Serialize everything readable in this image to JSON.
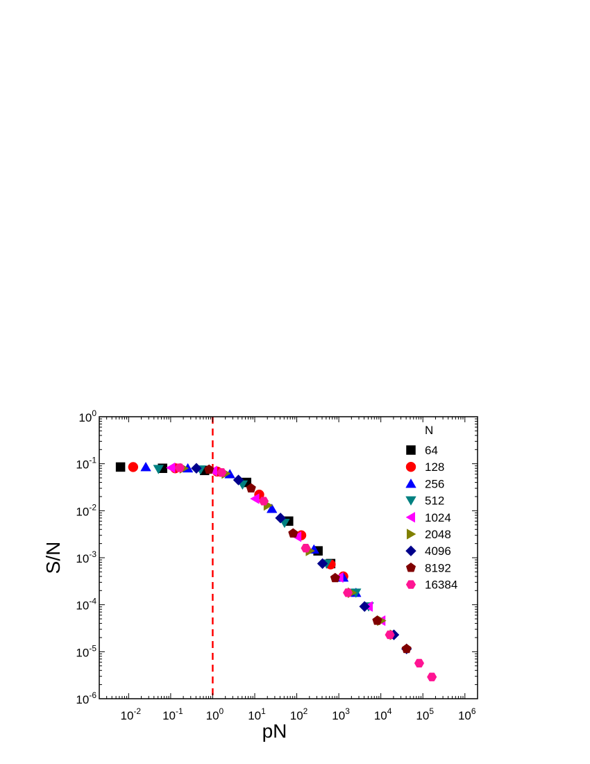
{
  "chart_data": {
    "type": "scatter",
    "title": "",
    "xlabel": "pN",
    "ylabel": "S/N",
    "xscale": "log",
    "yscale": "log",
    "xlim": [
      0.002,
      2000000
    ],
    "ylim": [
      1e-06,
      1
    ],
    "x_ticks": [
      {
        "base": "10",
        "exp": "-2",
        "value": 0.01
      },
      {
        "base": "10",
        "exp": "-1",
        "value": 0.1
      },
      {
        "base": "10",
        "exp": "0",
        "value": 1
      },
      {
        "base": "10",
        "exp": "1",
        "value": 10
      },
      {
        "base": "10",
        "exp": "2",
        "value": 100
      },
      {
        "base": "10",
        "exp": "3",
        "value": 1000
      },
      {
        "base": "10",
        "exp": "4",
        "value": 10000
      },
      {
        "base": "10",
        "exp": "5",
        "value": 100000
      },
      {
        "base": "10",
        "exp": "6",
        "value": 1000000
      }
    ],
    "y_ticks": [
      {
        "base": "10",
        "exp": "0",
        "value": 1
      },
      {
        "base": "10",
        "exp": "-1",
        "value": 0.1
      },
      {
        "base": "10",
        "exp": "-2",
        "value": 0.01
      },
      {
        "base": "10",
        "exp": "-3",
        "value": 0.001
      },
      {
        "base": "10",
        "exp": "-4",
        "value": 0.0001
      },
      {
        "base": "10",
        "exp": "-5",
        "value": 1e-05
      },
      {
        "base": "10",
        "exp": "-6",
        "value": 1e-06
      }
    ],
    "reference_line": {
      "x": 1,
      "color": "#ff0000",
      "style": "dashed"
    },
    "legend": {
      "title": "N",
      "placement": "top-right"
    },
    "series": [
      {
        "name": "64",
        "marker": "square",
        "color": "#000000",
        "points": [
          [
            0.0064,
            0.085
          ],
          [
            0.064,
            0.08
          ],
          [
            0.64,
            0.072
          ],
          [
            6.4,
            0.04
          ],
          [
            64,
            0.006
          ],
          [
            320,
            0.0014
          ],
          [
            640,
            0.00075
          ]
        ]
      },
      {
        "name": "128",
        "marker": "circle",
        "color": "#ff0000",
        "points": [
          [
            0.0128,
            0.085
          ],
          [
            0.128,
            0.08
          ],
          [
            1.28,
            0.068
          ],
          [
            12.8,
            0.022
          ],
          [
            128,
            0.003
          ],
          [
            640,
            0.00072
          ],
          [
            1280,
            0.0004
          ]
        ]
      },
      {
        "name": "256",
        "marker": "triangle-up",
        "color": "#0000ff",
        "points": [
          [
            0.0256,
            0.085
          ],
          [
            0.256,
            0.08
          ],
          [
            2.56,
            0.06
          ],
          [
            25.6,
            0.011
          ],
          [
            256,
            0.0015
          ],
          [
            1280,
            0.00038
          ],
          [
            2560,
            0.00018
          ]
        ]
      },
      {
        "name": "512",
        "marker": "triangle-down",
        "color": "#008080",
        "points": [
          [
            0.0512,
            0.077
          ],
          [
            0.512,
            0.075
          ],
          [
            5.12,
            0.036
          ],
          [
            51.2,
            0.0055
          ],
          [
            512,
            0.00075
          ],
          [
            2560,
            0.00018
          ],
          [
            5120,
            9.17e-05
          ]
        ]
      },
      {
        "name": "1024",
        "marker": "triangle-left",
        "color": "#ff00ff",
        "points": [
          [
            0.1024,
            0.082
          ],
          [
            1.024,
            0.07
          ],
          [
            10.24,
            0.018
          ],
          [
            102.4,
            0.0028
          ],
          [
            1024,
            0.00038
          ],
          [
            5120,
            9.17e-05
          ],
          [
            10240,
            4.58e-05
          ]
        ]
      },
      {
        "name": "2048",
        "marker": "triangle-right",
        "color": "#808000",
        "points": [
          [
            0.2048,
            0.08
          ],
          [
            2.048,
            0.062
          ],
          [
            20.48,
            0.013
          ],
          [
            204.8,
            0.0014
          ],
          [
            2048,
            0.00018
          ],
          [
            10240,
            4.58e-05
          ],
          [
            20480,
            2.29e-05
          ]
        ]
      },
      {
        "name": "4096",
        "marker": "diamond",
        "color": "#00008b",
        "points": [
          [
            0.4096,
            0.08
          ],
          [
            4.096,
            0.045
          ],
          [
            40.96,
            0.007
          ],
          [
            409.6,
            0.00075
          ],
          [
            4096,
            9.17e-05
          ],
          [
            20480,
            2.29e-05
          ],
          [
            40960,
            1.15e-05
          ]
        ]
      },
      {
        "name": "8192",
        "marker": "pentagon",
        "color": "#800000",
        "points": [
          [
            0.8192,
            0.075
          ],
          [
            8.192,
            0.03
          ],
          [
            81.92,
            0.0033
          ],
          [
            819.2,
            0.00037
          ],
          [
            8192,
            4.58e-05
          ],
          [
            40960,
            1.15e-05
          ]
        ]
      },
      {
        "name": "16384",
        "marker": "hexagon",
        "color": "#ff1493",
        "points": [
          [
            0.16384,
            0.082
          ],
          [
            1.6384,
            0.065
          ],
          [
            16.384,
            0.016
          ],
          [
            163.84,
            0.0016
          ],
          [
            1638.4,
            0.00018
          ],
          [
            16384,
            2.29e-05
          ],
          [
            81920,
            5.7e-06
          ],
          [
            163840,
            2.9e-06
          ]
        ]
      }
    ]
  }
}
